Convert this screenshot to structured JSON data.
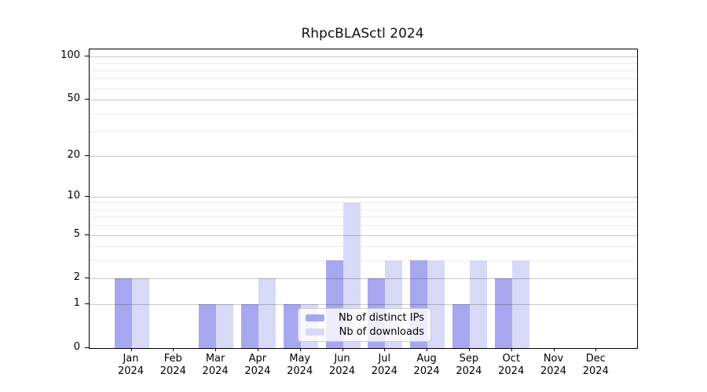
{
  "chart_data": {
    "type": "bar",
    "title": "RhpcBLASctl 2024",
    "categories": [
      "Jan",
      "Feb",
      "Mar",
      "Apr",
      "May",
      "Jun",
      "Jul",
      "Aug",
      "Sep",
      "Oct",
      "Nov",
      "Dec"
    ],
    "year": "2024",
    "series": [
      {
        "name": "Nb of distinct IPs",
        "color": "#a7a7f0",
        "values": [
          2,
          0,
          1,
          1,
          1,
          3,
          2,
          3,
          1,
          2,
          0,
          0
        ]
      },
      {
        "name": "Nb of downloads",
        "color": "#d8d8f7",
        "values": [
          2,
          0,
          1,
          2,
          1,
          9,
          3,
          3,
          3,
          3,
          0,
          0
        ]
      }
    ],
    "xlabel": "",
    "ylabel": "",
    "yscale": "log1p",
    "ylim": [
      0,
      112
    ],
    "yticks": [
      0,
      1,
      2,
      5,
      10,
      20,
      50,
      100
    ],
    "minor_gridlines": [
      3,
      4,
      6,
      7,
      8,
      9,
      30,
      40,
      60,
      70,
      80,
      90
    ],
    "grid": "on",
    "legend_position": "inside-lower-center"
  },
  "colors": {
    "bar_distinct_ips": "#a7a7f0",
    "bar_downloads": "#d8d8f7",
    "axis": "#000000",
    "grid_major": "#c9c9c9",
    "grid_minor": "#ebebeb",
    "legend_border": "#cccccc",
    "legend_background": "rgba(255,255,255,0.8)"
  }
}
